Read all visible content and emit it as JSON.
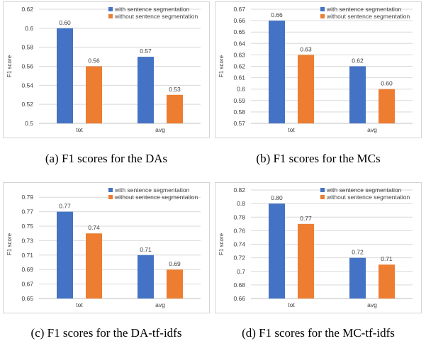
{
  "colors": {
    "series1": "#4472c4",
    "series2": "#ed7d31",
    "grid": "#d9d9d9",
    "axis": "#bfbfbf"
  },
  "chart_data": [
    {
      "type": "bar",
      "caption": "(a) F1 scores for the DAs",
      "ylabel": "F1 score",
      "categories": [
        "tot",
        "avg"
      ],
      "yticks": [
        "0.5",
        "0.52",
        "0.54",
        "0.56",
        "0.58",
        "0.6",
        "0.62"
      ],
      "ylim": [
        0.5,
        0.62
      ],
      "series": [
        {
          "name": "with sentence segmentation",
          "values": [
            0.6,
            0.57
          ],
          "labels": [
            "0.60",
            "0.57"
          ]
        },
        {
          "name": "without sentence segmentation",
          "values": [
            0.56,
            0.53
          ],
          "labels": [
            "0.56",
            "0.53"
          ]
        }
      ],
      "legend": "top-right",
      "grid": true
    },
    {
      "type": "bar",
      "caption": "(b) F1 scores for the MCs",
      "ylabel": "F1 score",
      "categories": [
        "tot",
        "avg"
      ],
      "yticks": [
        "0.57",
        "0.58",
        "0.59",
        "0.6",
        "0.61",
        "0.62",
        "0.63",
        "0.64",
        "0.65",
        "0.66",
        "0.67"
      ],
      "ylim": [
        0.57,
        0.67
      ],
      "series": [
        {
          "name": "with sentence segmentation",
          "values": [
            0.66,
            0.62
          ],
          "labels": [
            "0.66",
            "0.62"
          ]
        },
        {
          "name": "without sentence segmentation",
          "values": [
            0.63,
            0.6
          ],
          "labels": [
            "0.63",
            "0.60"
          ]
        }
      ],
      "legend": "top-right",
      "grid": true
    },
    {
      "type": "bar",
      "caption": "(c) F1 scores for the DA-tf-idfs",
      "ylabel": "F1 score",
      "categories": [
        "tot",
        "avg"
      ],
      "yticks": [
        "0.65",
        "0.67",
        "0.69",
        "0.71",
        "0.73",
        "0.75",
        "0.77",
        "0.79"
      ],
      "ylim": [
        0.65,
        0.8
      ],
      "series": [
        {
          "name": "with sentence segmentation",
          "values": [
            0.77,
            0.71
          ],
          "labels": [
            "0.77",
            "0.71"
          ]
        },
        {
          "name": "without sentence segmentation",
          "values": [
            0.74,
            0.69
          ],
          "labels": [
            "0.74",
            "0.69"
          ]
        }
      ],
      "legend": "top-right",
      "grid": true
    },
    {
      "type": "bar",
      "caption": "(d) F1 scores for the MC-tf-idfs",
      "ylabel": "F1 score",
      "categories": [
        "tot",
        "avg"
      ],
      "yticks": [
        "0.66",
        "0.68",
        "0.7",
        "0.72",
        "0.74",
        "0.76",
        "0.78",
        "0.8",
        "0.82"
      ],
      "ylim": [
        0.66,
        0.82
      ],
      "series": [
        {
          "name": "with sentence segmentation",
          "values": [
            0.8,
            0.72
          ],
          "labels": [
            "0.80",
            "0.72"
          ]
        },
        {
          "name": "without sentence segmentation",
          "values": [
            0.77,
            0.71
          ],
          "labels": [
            "0.77",
            "0.71"
          ]
        }
      ],
      "legend": "top-right",
      "grid": true
    }
  ]
}
